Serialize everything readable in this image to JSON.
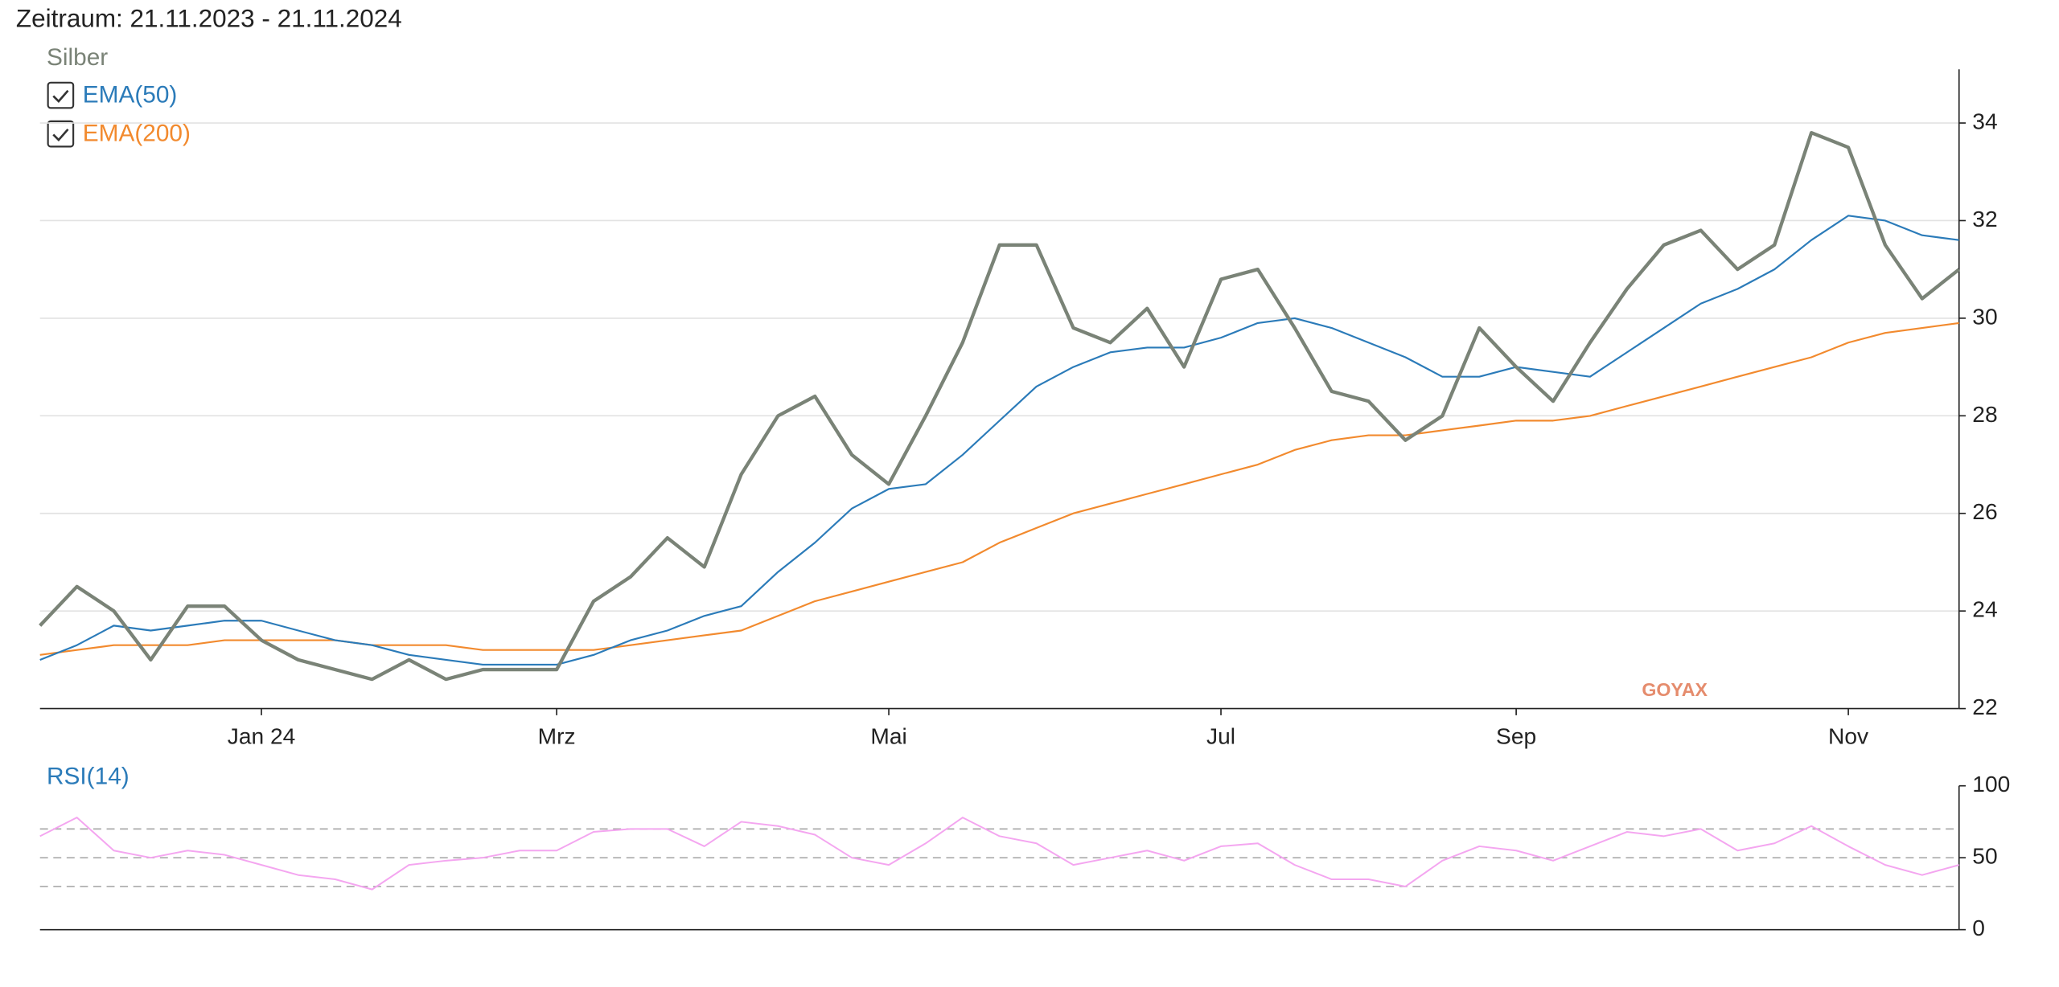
{
  "chart_data": [
    {
      "type": "line",
      "title": "Zeitraum: 21.11.2023 - 21.11.2024",
      "watermark": "GOYAX",
      "categories": [
        null,
        null,
        null,
        null,
        null,
        null,
        "Jan 24",
        null,
        null,
        null,
        null,
        null,
        null,
        null,
        "Mrz",
        null,
        null,
        null,
        null,
        null,
        null,
        null,
        null,
        "Mai",
        null,
        null,
        null,
        null,
        null,
        null,
        null,
        null,
        "Jul",
        null,
        null,
        null,
        null,
        null,
        null,
        null,
        "Sep",
        null,
        null,
        null,
        null,
        null,
        null,
        null,
        null,
        "Nov",
        null,
        null,
        null
      ],
      "series": [
        {
          "name": "Silber",
          "color": "#7a8377",
          "values": [
            23.7,
            24.5,
            24.0,
            23.0,
            24.1,
            24.1,
            23.4,
            23.0,
            22.8,
            22.6,
            23.0,
            22.6,
            22.8,
            22.8,
            22.8,
            24.2,
            24.7,
            25.5,
            24.9,
            26.8,
            28.0,
            28.4,
            27.2,
            26.6,
            28.0,
            29.5,
            31.5,
            31.5,
            29.8,
            29.5,
            30.2,
            29.0,
            30.8,
            31.0,
            29.8,
            28.5,
            28.3,
            27.5,
            28.0,
            29.8,
            29.0,
            28.3,
            29.5,
            30.6,
            31.5,
            31.8,
            31.0,
            31.5,
            33.8,
            33.5,
            31.5,
            30.4,
            31.0
          ]
        },
        {
          "name": "EMA(50)",
          "color": "#2b7bb9",
          "values": [
            23.0,
            23.3,
            23.7,
            23.6,
            23.7,
            23.8,
            23.8,
            23.6,
            23.4,
            23.3,
            23.1,
            23.0,
            22.9,
            22.9,
            22.9,
            23.1,
            23.4,
            23.6,
            23.9,
            24.1,
            24.8,
            25.4,
            26.1,
            26.5,
            26.6,
            27.2,
            27.9,
            28.6,
            29.0,
            29.3,
            29.4,
            29.4,
            29.6,
            29.9,
            30.0,
            29.8,
            29.5,
            29.2,
            28.8,
            28.8,
            29.0,
            28.9,
            28.8,
            29.3,
            29.8,
            30.3,
            30.6,
            31.0,
            31.6,
            32.1,
            32.0,
            31.7,
            31.6
          ]
        },
        {
          "name": "EMA(200)",
          "color": "#f28a2e",
          "values": [
            23.1,
            23.2,
            23.3,
            23.3,
            23.3,
            23.4,
            23.4,
            23.4,
            23.4,
            23.3,
            23.3,
            23.3,
            23.2,
            23.2,
            23.2,
            23.2,
            23.3,
            23.4,
            23.5,
            23.6,
            23.9,
            24.2,
            24.4,
            24.6,
            24.8,
            25.0,
            25.4,
            25.7,
            26.0,
            26.2,
            26.4,
            26.6,
            26.8,
            27.0,
            27.3,
            27.5,
            27.6,
            27.6,
            27.7,
            27.8,
            27.9,
            27.9,
            28.0,
            28.2,
            28.4,
            28.6,
            28.8,
            29.0,
            29.2,
            29.5,
            29.7,
            29.8,
            29.9
          ]
        }
      ],
      "ylim": [
        22,
        35.1
      ],
      "yticks": [
        22,
        24,
        26,
        28,
        30,
        32,
        34
      ],
      "grid": true
    },
    {
      "type": "line",
      "title": "RSI(14)",
      "series": [
        {
          "name": "RSI(14)",
          "color": "#f4a6f0",
          "values": [
            65,
            78,
            55,
            50,
            55,
            52,
            45,
            38,
            35,
            28,
            45,
            48,
            50,
            55,
            55,
            68,
            70,
            70,
            58,
            75,
            72,
            66,
            50,
            45,
            60,
            78,
            65,
            60,
            45,
            50,
            55,
            48,
            58,
            60,
            45,
            35,
            35,
            30,
            48,
            58,
            55,
            48,
            58,
            68,
            65,
            70,
            55,
            60,
            72,
            58,
            45,
            38,
            45
          ]
        }
      ],
      "levels": [
        30,
        50,
        70
      ],
      "ylim": [
        0,
        100
      ],
      "yticks": [
        0,
        50,
        100
      ]
    }
  ]
}
